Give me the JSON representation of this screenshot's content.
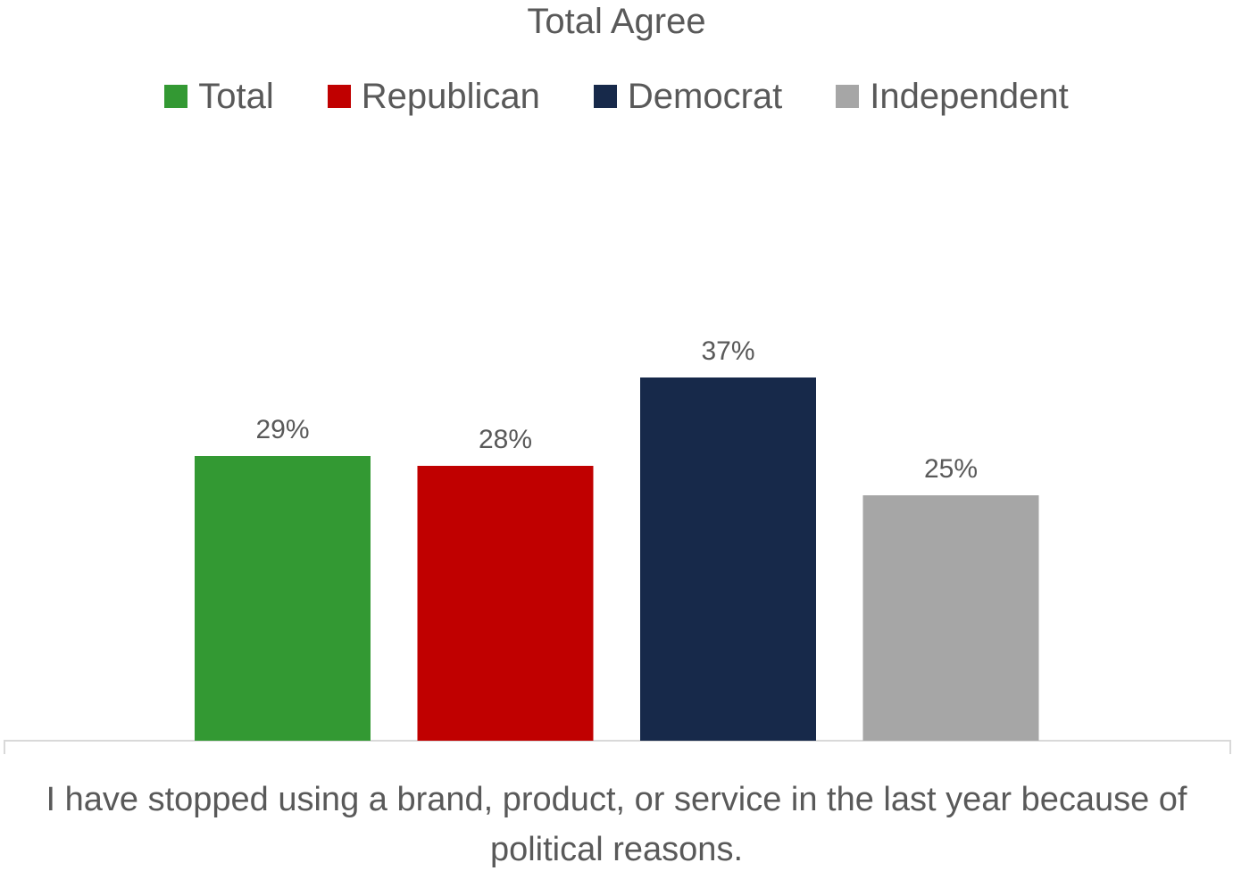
{
  "chart_data": {
    "type": "bar",
    "title": "Total Agree",
    "xlabel": "I have stopped using a brand, product, or service in the last year because of political reasons.",
    "ylabel": "",
    "categories": [
      "Total",
      "Republican",
      "Democrat",
      "Independent"
    ],
    "values": [
      29,
      28,
      37,
      25
    ],
    "data_labels": [
      "29%",
      "28%",
      "37%",
      "25%"
    ],
    "colors": [
      "#339933",
      "#C00000",
      "#17294A",
      "#A6A6A6"
    ],
    "ylim": [
      0,
      60
    ],
    "grid": false,
    "legend_position": "top"
  }
}
